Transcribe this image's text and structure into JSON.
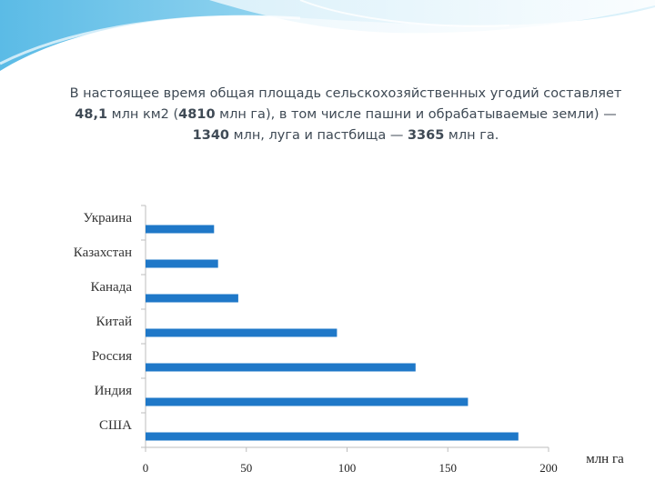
{
  "caption": {
    "part1": "В настоящее время общая площадь сельскохозяйственных угодий составляет ",
    "value1": "48,1",
    "part2": " млн км2 (",
    "value2": "4810",
    "part3": " млн га), в том числе пашни и обрабатываемые земли) — ",
    "value3": "1340",
    "part4": " млн, луга и пастбища — ",
    "value4": "3365",
    "part5": " млн га."
  },
  "chart_data": {
    "type": "bar",
    "orientation": "horizontal",
    "categories": [
      "Украина",
      "Казахстан",
      "Канада",
      "Китай",
      "Россия",
      "Индия",
      "США"
    ],
    "values": [
      34,
      36,
      46,
      95,
      134,
      160,
      185
    ],
    "xlabel": "млн га",
    "xlim": [
      0,
      200
    ],
    "xticks": [
      0,
      50,
      100,
      150,
      200
    ],
    "grid": false,
    "bar_color": "#1f78c8"
  },
  "colors": {
    "accent": "#1f78c8",
    "header_wave": "#6cc2e8"
  }
}
